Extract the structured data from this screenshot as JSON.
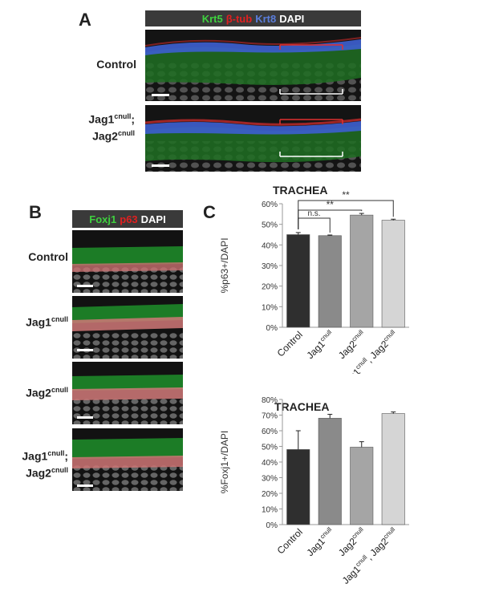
{
  "panelA": {
    "letter": "A",
    "stain": [
      {
        "text": "Krt5",
        "color": "#3fd13f"
      },
      {
        "text": "β-tub",
        "color": "#e02020"
      },
      {
        "text": "Krt8",
        "color": "#5a7ddb"
      },
      {
        "text": "DAPI",
        "color": "#ffffff"
      }
    ],
    "rows": [
      {
        "line1": "Control",
        "sup1": "",
        "line2": "",
        "sup2": ""
      },
      {
        "line1": "Jag1",
        "sup1": "cnull",
        "line2": "Jag2",
        "sup2": "cnull"
      }
    ]
  },
  "panelB": {
    "letter": "B",
    "stain": [
      {
        "text": "Foxj1",
        "color": "#3fd13f"
      },
      {
        "text": "p63",
        "color": "#e02020"
      },
      {
        "text": "DAPI",
        "color": "#ffffff"
      }
    ],
    "rows": [
      {
        "line1": "Control",
        "sup1": "",
        "line2": "",
        "sup2": ""
      },
      {
        "line1": "Jag1",
        "sup1": "cnull",
        "line2": "",
        "sup2": ""
      },
      {
        "line1": "Jag2",
        "sup1": "cnull",
        "line2": "",
        "sup2": ""
      },
      {
        "line1": "Jag1",
        "sup1": "cnull",
        "line2": "Jag2",
        "sup2": "cnull"
      }
    ]
  },
  "panelC": {
    "letter": "C"
  },
  "colors": {
    "control": "#2f2f2f",
    "jag1": "#8a8a8a",
    "jag2": "#a5a5a5",
    "double": "#d5d5d5"
  },
  "chart_data": [
    {
      "type": "bar",
      "title": "TRACHEA",
      "ylabel": "%p63+/DAPI",
      "categories": [
        {
          "base": "Control",
          "sup": ""
        },
        {
          "base": "Jag1",
          "sup": "cnull"
        },
        {
          "base": "Jag2",
          "sup": "cnull"
        },
        {
          "base": "Jag1",
          "sup": "cnull",
          "base2": ", Jag2",
          "sup2": "cnull"
        }
      ],
      "values": [
        45,
        44.5,
        54.5,
        52
      ],
      "errors": [
        1,
        0.3,
        0.8,
        0.5
      ],
      "ylim": [
        0,
        60
      ],
      "yticks": [
        "0%",
        "10%",
        "20%",
        "30%",
        "40%",
        "50%",
        "60%"
      ],
      "significance": [
        {
          "from": 0,
          "to": 1,
          "label": "n.s."
        },
        {
          "from": 0,
          "to": 2,
          "label": "**"
        },
        {
          "from": 0,
          "to": 3,
          "label": "**"
        }
      ]
    },
    {
      "type": "bar",
      "title": "TRACHEA",
      "ylabel": "%Foxj1+/DAPI",
      "categories": [
        {
          "base": "Control",
          "sup": ""
        },
        {
          "base": "Jag1",
          "sup": "cnull"
        },
        {
          "base": "Jag2",
          "sup": "cnull"
        },
        {
          "base": "Jag1",
          "sup": "cnull",
          "base2": ", Jag2",
          "sup2": "cnull"
        }
      ],
      "values": [
        48,
        68,
        49.5,
        71
      ],
      "errors": [
        12,
        2.5,
        3.5,
        1
      ],
      "ylim": [
        0,
        80
      ],
      "yticks": [
        "0%",
        "10%",
        "20%",
        "30%",
        "40%",
        "50%",
        "60%",
        "70%",
        "80%"
      ],
      "significance": []
    }
  ]
}
